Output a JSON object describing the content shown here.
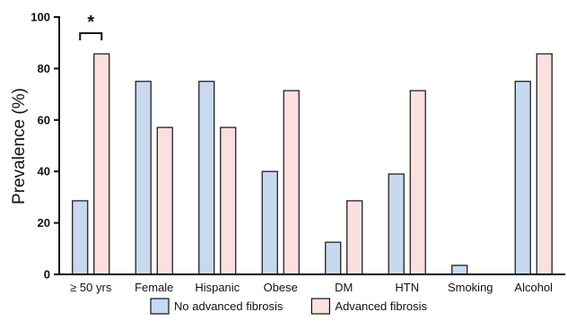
{
  "chart_data": {
    "type": "bar",
    "ylabel": "Prevalence (%)",
    "ylim": [
      0,
      100
    ],
    "yticks": [
      0,
      20,
      40,
      60,
      80,
      100
    ],
    "categories": [
      "≥ 50 yrs",
      "Female",
      "Hispanic",
      "Obese",
      "DM",
      "HTN",
      "Smoking",
      "Alcohol"
    ],
    "series": [
      {
        "name": "No advanced fibrosis",
        "color": "#c6d9f1",
        "values": [
          28.6,
          75,
          75,
          40,
          12.5,
          39,
          3.5,
          75
        ]
      },
      {
        "name": "Advanced fibrosis",
        "color": "#fce0e0",
        "values": [
          85.7,
          57.1,
          57.1,
          71.4,
          28.6,
          71.4,
          0,
          85.7
        ]
      }
    ],
    "annotations": [
      {
        "text": "*",
        "category": "≥ 50 yrs"
      }
    ],
    "legend": "bottom",
    "grid": false
  }
}
